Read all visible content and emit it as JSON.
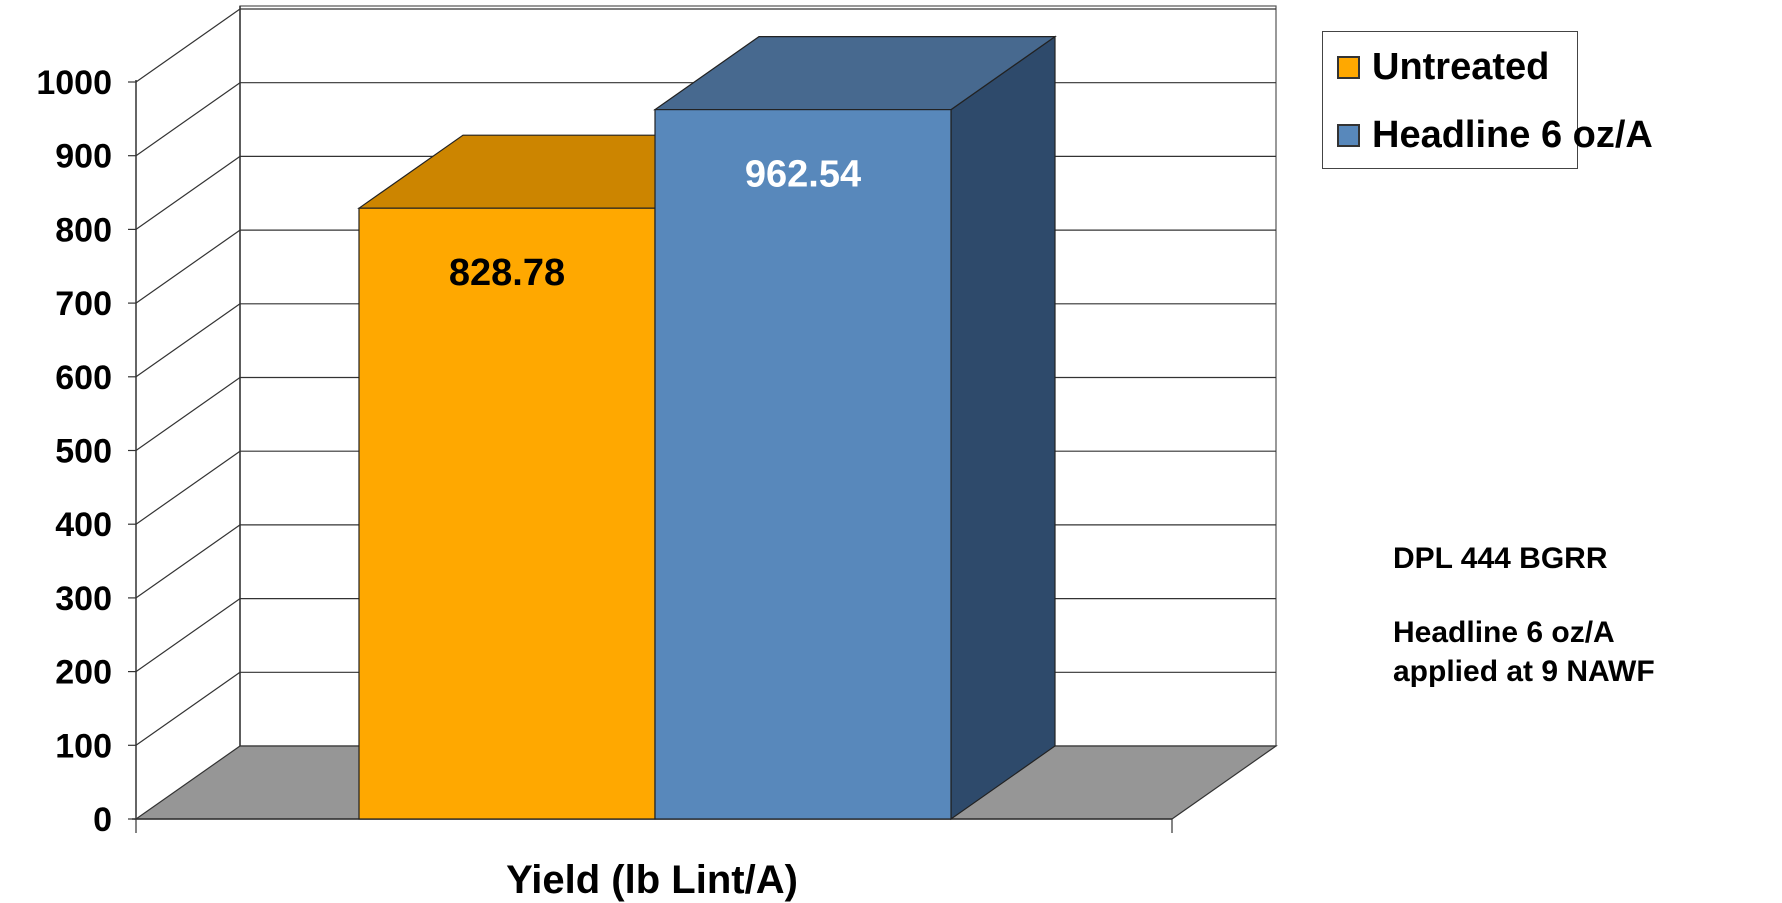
{
  "chart_data": {
    "type": "bar",
    "title": "",
    "xlabel": "Yield (lb Lint/A)",
    "ylabel": "",
    "ylim": [
      0,
      1000
    ],
    "yticks": [
      0,
      100,
      200,
      300,
      400,
      500,
      600,
      700,
      800,
      900,
      1000
    ],
    "grid": true,
    "legend_position": "top-right",
    "series": [
      {
        "name": "Untreated",
        "value": 828.78,
        "label": "828.78",
        "color_front": "#ffa800",
        "color_top": "#cc8500",
        "label_color": "#000000"
      },
      {
        "name": "Headline 6 oz/A",
        "value": 962.54,
        "label": "962.54",
        "color_front": "#5888bb",
        "color_top": "#47698f",
        "color_side": "#2e4a6b",
        "label_color": "#ffffff"
      }
    ]
  },
  "annotations": {
    "variety": "DPL 444 BGRR",
    "treatment_line1": "Headline 6 oz/A",
    "treatment_line2": "applied at 9 NAWF"
  }
}
